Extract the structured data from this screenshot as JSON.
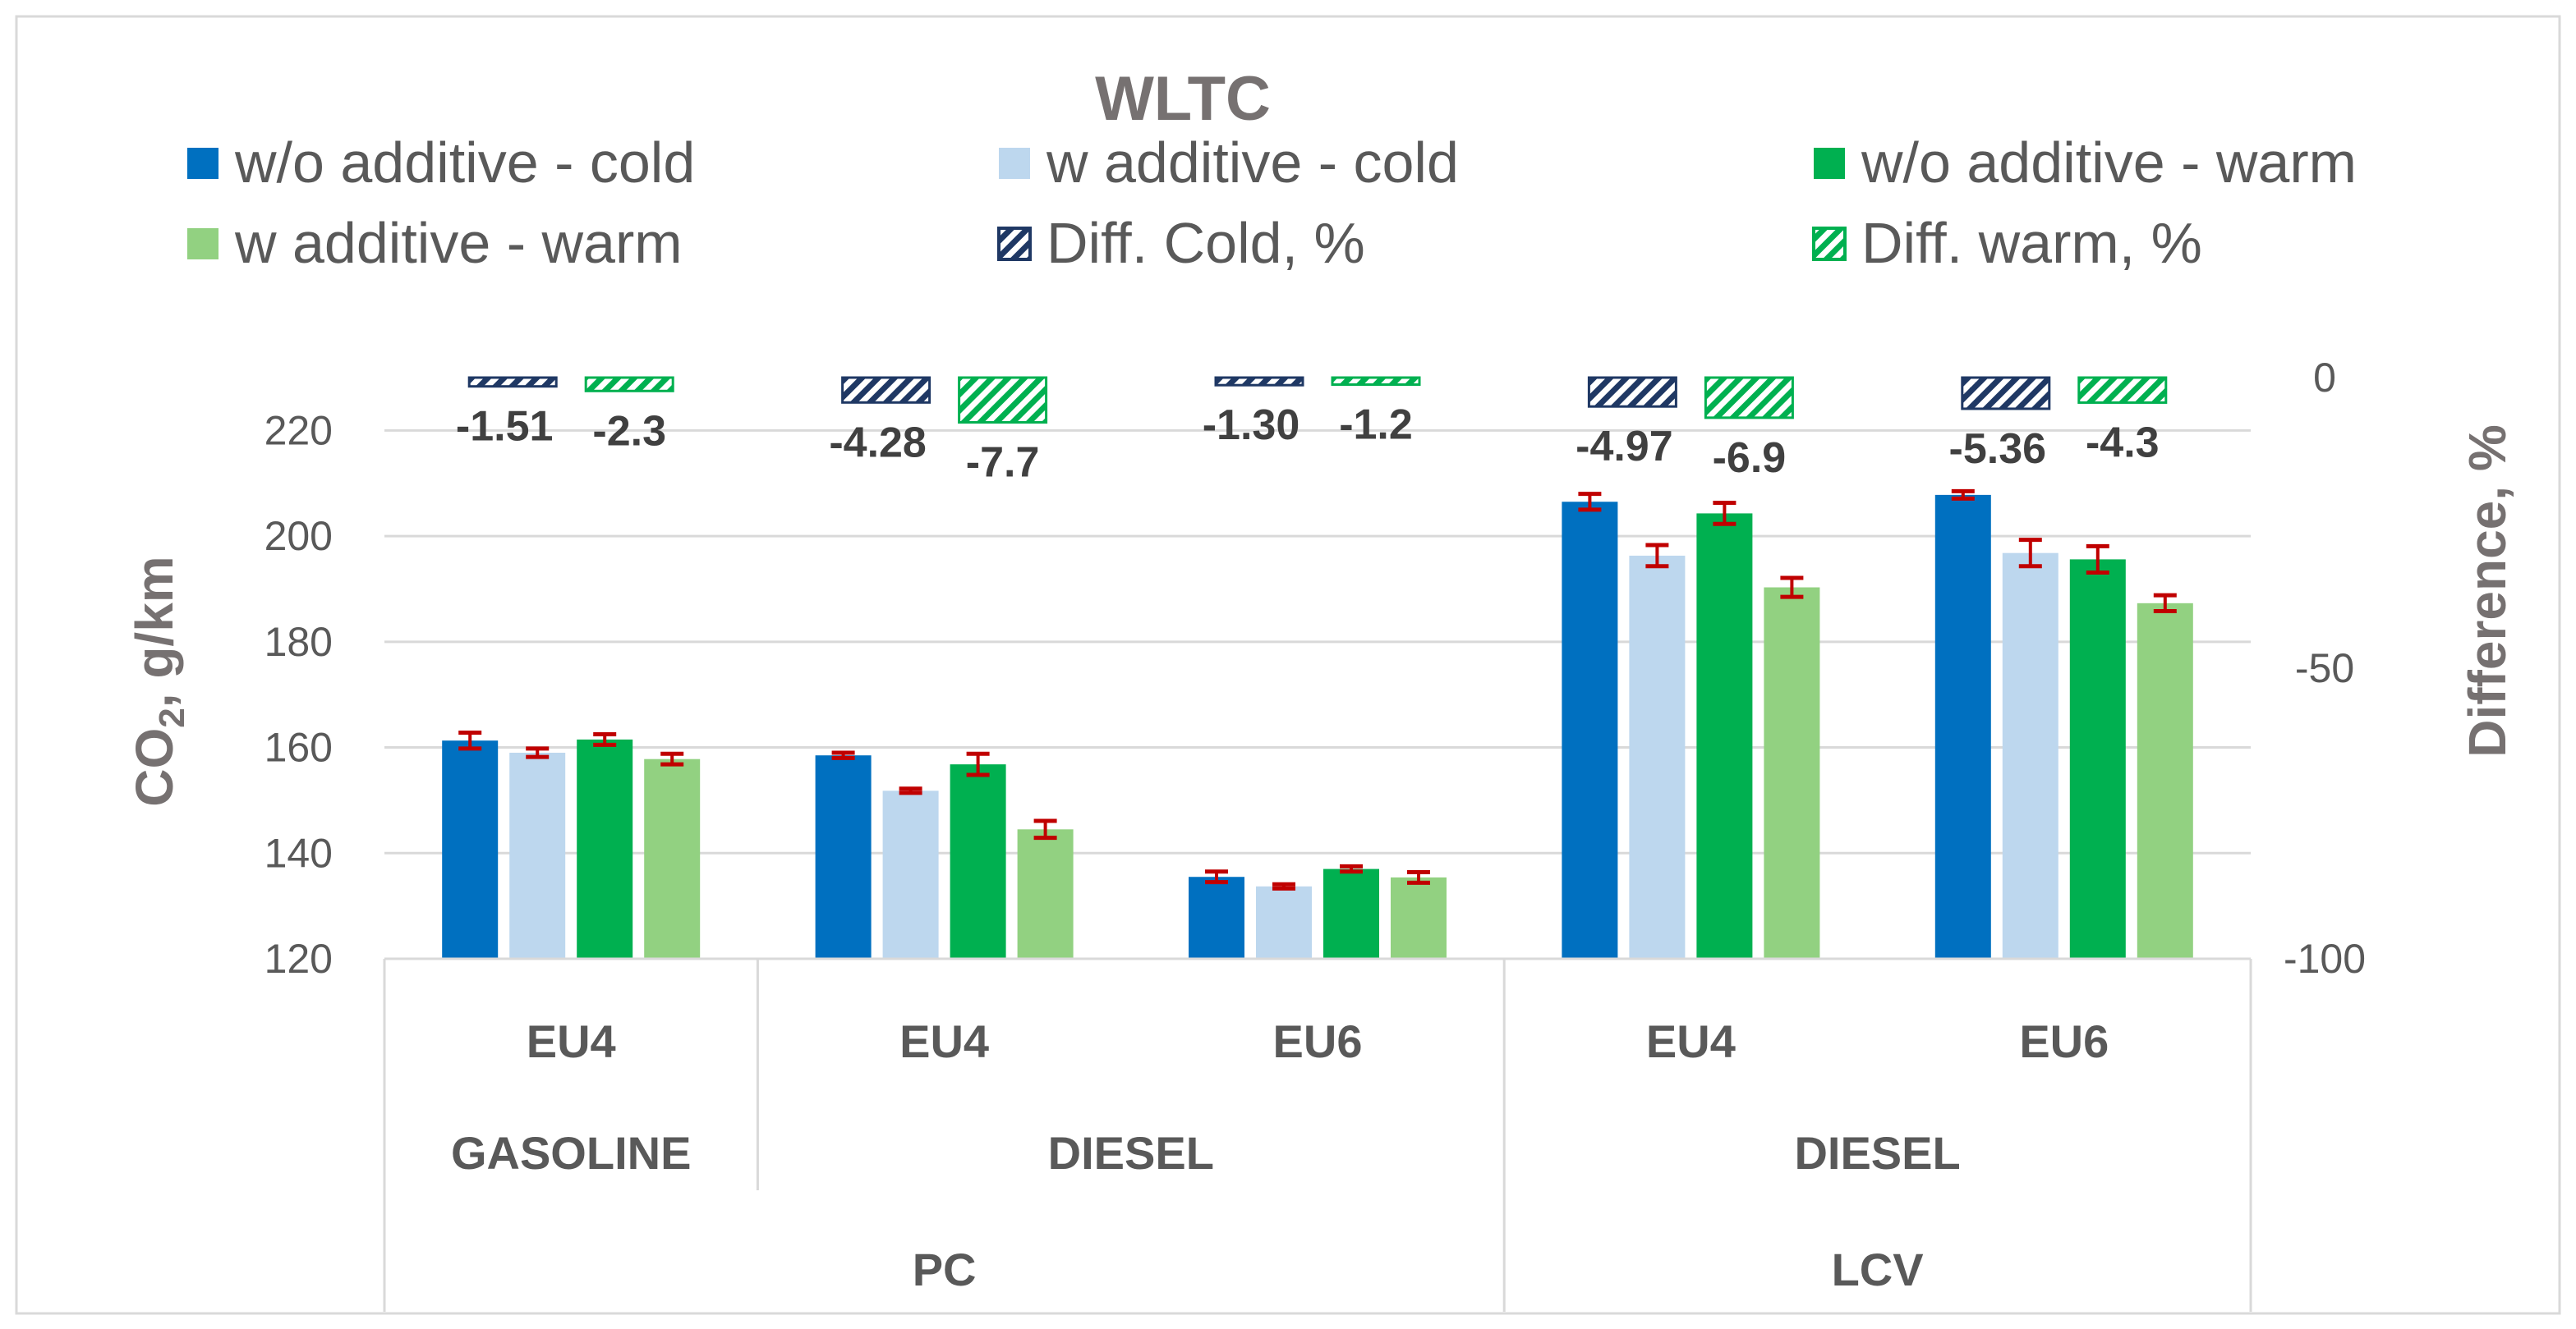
{
  "chart_data": {
    "type": "bar",
    "title": "WLTC",
    "ylabel_main": "CO",
    "ylabel_sub": "2",
    "ylabel_rest": ", g/km",
    "y2label": "Difference, %",
    "ylim": [
      120,
      230
    ],
    "yticks": [
      120,
      140,
      160,
      180,
      200,
      220
    ],
    "y2lim": [
      -100,
      0
    ],
    "y2ticks": [
      0,
      -50,
      -100
    ],
    "grid": true,
    "colors": {
      "cold_wo": "#0070c0",
      "cold_w": "#bdd7ee",
      "warm_wo": "#00b050",
      "warm_w": "#92d181",
      "diff_cold": "#1f3864",
      "diff_warm": "#00b050",
      "error": "#c00000"
    },
    "legend": [
      {
        "key": "cold_wo",
        "label": "w/o additive - cold",
        "pattern": false
      },
      {
        "key": "cold_w",
        "label": "w additive - cold",
        "pattern": false
      },
      {
        "key": "warm_wo",
        "label": "w/o additive - warm",
        "pattern": false
      },
      {
        "key": "warm_w",
        "label": "w additive - warm",
        "pattern": false
      },
      {
        "key": "diff_cold",
        "label": "Diff. Cold, %",
        "pattern": true
      },
      {
        "key": "diff_warm",
        "label": "Diff. warm, %",
        "pattern": true
      }
    ],
    "categories": [
      {
        "standard": "EU4",
        "fuel": "GASOLINE",
        "vehicle": "PC",
        "values": [
          161.3,
          159.0,
          161.5,
          157.8
        ],
        "errors": [
          1.5,
          0.8,
          1.0,
          1.0
        ],
        "diff": [
          -1.51,
          -2.3
        ],
        "diff_labels": [
          "-1.51",
          "-2.3"
        ]
      },
      {
        "standard": "EU4",
        "fuel": "DIESEL",
        "vehicle": "PC",
        "values": [
          158.5,
          151.8,
          156.8,
          144.5
        ],
        "errors": [
          0.5,
          0.4,
          2.0,
          1.6
        ],
        "diff": [
          -4.28,
          -7.7
        ],
        "diff_labels": [
          "-4.28",
          "-7.7"
        ]
      },
      {
        "standard": "EU6",
        "fuel": "DIESEL",
        "vehicle": "PC",
        "values": [
          135.5,
          133.7,
          137.0,
          135.4
        ],
        "errors": [
          1.0,
          0.4,
          0.5,
          1.0
        ],
        "diff": [
          -1.3,
          -1.2
        ],
        "diff_labels": [
          "-1.30",
          "-1.2"
        ]
      },
      {
        "standard": "EU4",
        "fuel": "DIESEL",
        "vehicle": "LCV",
        "values": [
          206.5,
          196.3,
          204.3,
          190.3
        ],
        "errors": [
          1.5,
          2.0,
          2.0,
          1.8
        ],
        "diff": [
          -4.97,
          -6.9
        ],
        "diff_labels": [
          "-4.97",
          "-6.9"
        ]
      },
      {
        "standard": "EU6",
        "fuel": "DIESEL",
        "vehicle": "LCV",
        "values": [
          207.8,
          196.8,
          195.6,
          187.3
        ],
        "errors": [
          0.7,
          2.5,
          2.5,
          1.5
        ],
        "diff": [
          -5.36,
          -4.3
        ],
        "diff_labels": [
          "-5.36",
          "-4.3"
        ]
      }
    ],
    "fuel_groups": [
      {
        "label": "GASOLINE",
        "span": [
          0,
          0
        ]
      },
      {
        "label": "DIESEL",
        "span": [
          1,
          2
        ]
      },
      {
        "label": "DIESEL",
        "span": [
          3,
          4
        ]
      }
    ],
    "vehicle_groups": [
      {
        "label": "PC",
        "span": [
          0,
          2
        ]
      },
      {
        "label": "LCV",
        "span": [
          3,
          4
        ]
      }
    ]
  }
}
